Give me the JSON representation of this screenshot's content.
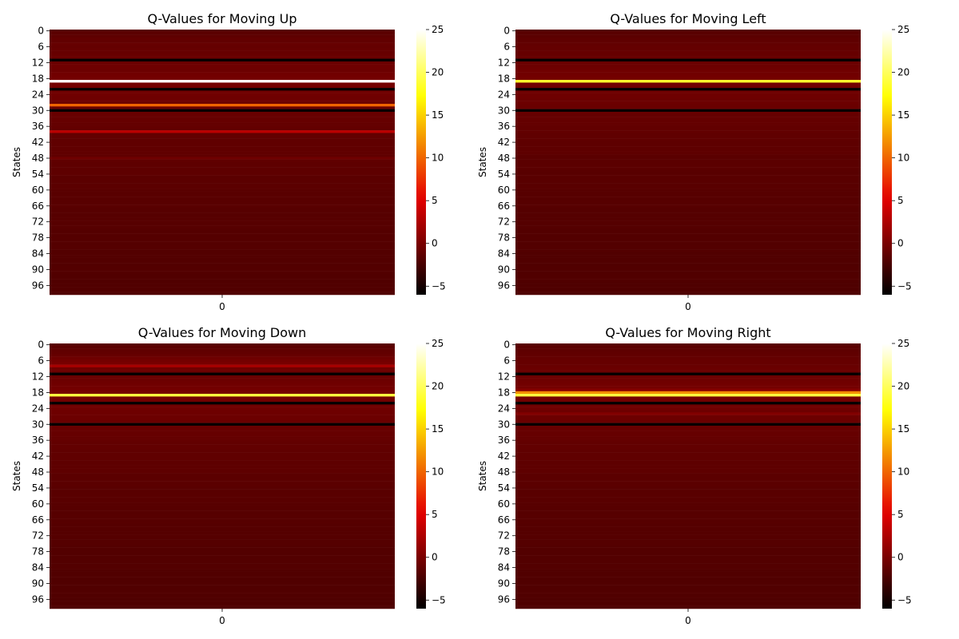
{
  "colormap": "hot",
  "colormap_stops": [
    "#000000",
    "#e60000",
    "#ffff00",
    "#ffffff"
  ],
  "chart_data": [
    {
      "type": "heatmap",
      "title": "Q-Values for Moving Up",
      "xlabel": "",
      "ylabel": "States",
      "x_categories": [
        "0"
      ],
      "y_tick_labels": [
        "0",
        "6",
        "12",
        "18",
        "24",
        "30",
        "36",
        "42",
        "48",
        "54",
        "60",
        "66",
        "72",
        "78",
        "84",
        "90",
        "96"
      ],
      "n_states": 100,
      "color_range": [
        -6,
        25
      ],
      "colorbar_ticks": [
        -5,
        0,
        5,
        10,
        15,
        20,
        25
      ],
      "values": [
        -1.6,
        -1.5,
        -1.4,
        -1.2,
        -1.2,
        -1.0,
        -1.1,
        -1.0,
        -1.0,
        -0.9,
        -0.8,
        -5.9,
        -0.8,
        -0.6,
        -0.6,
        -0.7,
        -0.5,
        -0.4,
        -0.3,
        25.0,
        -0.3,
        -0.4,
        -5.8,
        -0.5,
        -0.5,
        -0.6,
        -0.6,
        -0.7,
        10.0,
        -0.8,
        -5.9,
        -0.9,
        -0.9,
        -1.0,
        -1.0,
        -1.1,
        -1.1,
        -1.2,
        3.2,
        -1.2,
        -1.2,
        -1.3,
        -1.3,
        -1.3,
        -1.3,
        -1.3,
        -1.3,
        -1.3,
        -0.6,
        -1.3,
        -1.4,
        -1.4,
        -1.4,
        -1.4,
        -1.4,
        -1.5,
        -1.5,
        -1.5,
        -1.5,
        -1.5,
        -1.6,
        -1.6,
        -1.6,
        -1.6,
        -1.6,
        -1.6,
        -1.6,
        -1.7,
        -1.7,
        -1.7,
        -1.7,
        -1.7,
        -1.7,
        -1.7,
        -1.7,
        -1.8,
        -1.8,
        -1.8,
        -1.8,
        -1.8,
        -1.8,
        -1.8,
        -1.8,
        -1.9,
        -1.9,
        -1.9,
        -1.9,
        -1.9,
        -1.9,
        -1.9,
        -1.9,
        -1.9,
        -2.0,
        -2.0,
        -2.0,
        -2.0,
        -2.0,
        -2.0,
        -2.0,
        -2.0
      ]
    },
    {
      "type": "heatmap",
      "title": "Q-Values for Moving Left",
      "xlabel": "",
      "ylabel": "States",
      "x_categories": [
        "0"
      ],
      "y_tick_labels": [
        "0",
        "6",
        "12",
        "18",
        "24",
        "30",
        "36",
        "42",
        "48",
        "54",
        "60",
        "66",
        "72",
        "78",
        "84",
        "90",
        "96"
      ],
      "n_states": 100,
      "color_range": [
        -6,
        25
      ],
      "colorbar_ticks": [
        -5,
        0,
        5,
        10,
        15,
        20,
        25
      ],
      "values": [
        -1.7,
        -1.6,
        -1.5,
        -1.4,
        -1.3,
        -1.2,
        -1.1,
        -1.1,
        -1.0,
        -1.0,
        -0.9,
        -5.9,
        -0.8,
        -0.7,
        -0.6,
        -0.5,
        -0.5,
        -0.4,
        -0.3,
        18.5,
        -0.4,
        -0.5,
        -5.8,
        -0.5,
        -0.6,
        -0.6,
        -0.7,
        -0.7,
        -0.8,
        -0.8,
        -5.9,
        -0.9,
        -1.0,
        -1.0,
        -1.1,
        -1.1,
        -1.2,
        -1.2,
        -1.2,
        -1.3,
        -1.3,
        -1.3,
        -1.4,
        -1.4,
        -1.4,
        -1.4,
        -1.4,
        -1.5,
        -1.5,
        -1.5,
        -1.5,
        -1.5,
        -1.5,
        -1.6,
        -1.6,
        -1.6,
        -1.6,
        -1.6,
        -1.6,
        -1.6,
        -1.7,
        -1.7,
        -1.7,
        -1.7,
        -1.7,
        -1.7,
        -1.7,
        -1.8,
        -1.8,
        -1.8,
        -1.8,
        -1.8,
        -1.8,
        -1.8,
        -1.8,
        -1.9,
        -1.9,
        -1.9,
        -1.9,
        -1.9,
        -1.9,
        -1.9,
        -1.9,
        -1.9,
        -2.0,
        -2.0,
        -2.0,
        -2.0,
        -2.0,
        -2.0,
        -2.0,
        -2.0,
        -2.0,
        -2.0,
        -2.0,
        -2.1,
        -2.1,
        -2.1,
        -2.1,
        -2.1
      ]
    },
    {
      "type": "heatmap",
      "title": "Q-Values for Moving Down",
      "xlabel": "",
      "ylabel": "States",
      "x_categories": [
        "0"
      ],
      "y_tick_labels": [
        "0",
        "6",
        "12",
        "18",
        "24",
        "30",
        "36",
        "42",
        "48",
        "54",
        "60",
        "66",
        "72",
        "78",
        "84",
        "90",
        "96"
      ],
      "n_states": 100,
      "color_range": [
        -6,
        25
      ],
      "colorbar_ticks": [
        -5,
        0,
        5,
        10,
        15,
        20,
        25
      ],
      "values": [
        -1.6,
        -1.5,
        -1.3,
        -1.2,
        -1.0,
        -0.6,
        -0.3,
        -0.1,
        2.2,
        -0.5,
        -0.7,
        -5.9,
        -0.8,
        -0.7,
        -0.6,
        -0.5,
        -0.4,
        -0.3,
        -0.2,
        19.0,
        -0.3,
        -0.4,
        -5.8,
        -0.5,
        -0.5,
        -0.6,
        -0.6,
        -0.7,
        -0.7,
        -0.8,
        -5.9,
        -0.9,
        -0.9,
        -1.0,
        -1.0,
        -1.1,
        -1.1,
        -1.2,
        -1.2,
        -1.2,
        -1.3,
        -1.3,
        -1.3,
        -1.3,
        -1.4,
        -1.4,
        -1.4,
        -1.4,
        -1.4,
        -1.5,
        -1.5,
        -1.5,
        -1.5,
        -1.5,
        -1.6,
        -1.6,
        -1.6,
        -1.6,
        -1.6,
        -1.6,
        -1.7,
        -1.7,
        -1.7,
        -1.7,
        -1.7,
        -1.7,
        -1.7,
        -1.7,
        -1.8,
        -1.8,
        -1.8,
        -1.8,
        -1.8,
        -1.8,
        -1.8,
        -1.8,
        -1.9,
        -1.9,
        -1.9,
        -1.9,
        -1.9,
        -1.9,
        -1.9,
        -1.9,
        -1.9,
        -2.0,
        -2.0,
        -2.0,
        -2.0,
        -2.0,
        -2.0,
        -2.0,
        -2.0,
        -2.0,
        -2.0,
        -2.0,
        -2.1,
        -2.1,
        -2.1,
        -2.1
      ]
    },
    {
      "type": "heatmap",
      "title": "Q-Values for Moving Right",
      "xlabel": "",
      "ylabel": "States",
      "x_categories": [
        "0"
      ],
      "y_tick_labels": [
        "0",
        "6",
        "12",
        "18",
        "24",
        "30",
        "36",
        "42",
        "48",
        "54",
        "60",
        "66",
        "72",
        "78",
        "84",
        "90",
        "96"
      ],
      "n_states": 100,
      "color_range": [
        -6,
        25
      ],
      "colorbar_ticks": [
        -5,
        0,
        5,
        10,
        15,
        20,
        25
      ],
      "values": [
        -1.6,
        -1.5,
        -1.4,
        -1.3,
        -1.2,
        -1.1,
        -1.0,
        -1.0,
        -0.9,
        -0.8,
        -0.8,
        -5.9,
        -0.7,
        -0.6,
        -0.5,
        -0.4,
        -0.3,
        0.5,
        12.0,
        19.0,
        -0.3,
        -0.4,
        -5.8,
        -0.5,
        -0.5,
        -0.6,
        0.4,
        -0.7,
        -0.7,
        -0.8,
        -5.9,
        -0.9,
        -0.9,
        -1.0,
        -1.0,
        -1.1,
        -1.1,
        -1.2,
        -1.2,
        -1.2,
        -1.3,
        -1.3,
        -1.3,
        -1.3,
        -1.4,
        -1.4,
        -1.4,
        -1.4,
        -1.4,
        -1.5,
        -1.5,
        -1.5,
        -1.5,
        -1.5,
        -1.6,
        -1.6,
        -1.6,
        -1.6,
        -1.6,
        -1.6,
        -1.7,
        -1.7,
        -1.7,
        -1.7,
        -1.7,
        -1.7,
        -1.7,
        -1.7,
        -1.8,
        -1.8,
        -1.8,
        -1.8,
        -1.8,
        -1.8,
        -1.8,
        -1.8,
        -1.9,
        -1.9,
        -1.9,
        -1.9,
        -1.9,
        -1.9,
        -1.9,
        -1.9,
        -1.9,
        -2.0,
        -2.0,
        -2.0,
        -2.0,
        -2.0,
        -2.0,
        -2.0,
        -2.0,
        -2.0,
        -2.0,
        -2.0,
        -2.1,
        -2.1,
        -2.1,
        -2.1
      ]
    }
  ]
}
